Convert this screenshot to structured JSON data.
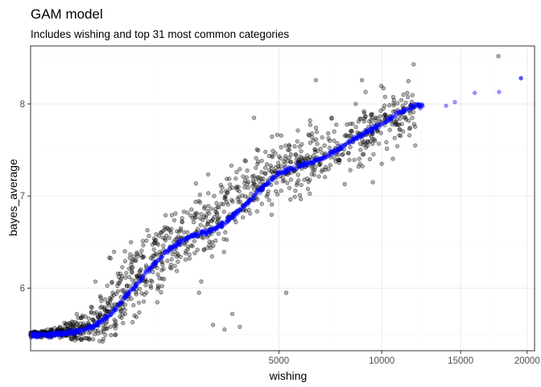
{
  "chart_data": {
    "type": "scatter",
    "title": "GAM model",
    "subtitle": "Includes wishing and top 31 most common categories",
    "xlabel": "wishing",
    "ylabel": "bayes_average",
    "x_scale": "sqrt",
    "xlim": [
      0,
      20600
    ],
    "ylim": [
      5.32,
      8.63
    ],
    "x_ticks": [
      5000,
      10000,
      15000,
      20000
    ],
    "x_tick_labels": [
      "5000",
      "10000",
      "15000",
      "20000"
    ],
    "y_ticks": [
      6,
      7,
      8
    ],
    "y_tick_labels": [
      "6",
      "7",
      "8"
    ],
    "grid": true,
    "colors": {
      "observed": "#000000",
      "fitted": "#0000ff",
      "panel_border": "#333333",
      "grid_major": "#ebebeb",
      "grid_minor": "#f5f5f5"
    },
    "series": [
      {
        "role": "observed",
        "cloud_anchors": {
          "x": [
            0,
            200,
            400,
            600,
            800,
            1000,
            1200,
            1500,
            1900,
            2400,
            3000,
            3700,
            4500,
            5500,
            7000,
            9000,
            11000,
            14000,
            17500
          ],
          "y": [
            5.5,
            5.56,
            5.7,
            5.88,
            6.05,
            6.18,
            6.3,
            6.45,
            6.57,
            6.65,
            6.82,
            7.05,
            7.22,
            7.3,
            7.45,
            7.65,
            7.85,
            7.95,
            8.15
          ],
          "spread": [
            0.02,
            0.15,
            0.28,
            0.35,
            0.38,
            0.38,
            0.38,
            0.38,
            0.36,
            0.36,
            0.34,
            0.33,
            0.32,
            0.3,
            0.3,
            0.3,
            0.3,
            0.25,
            0.25
          ]
        },
        "outliers": [
          [
            17750,
            8.52
          ],
          [
            11900,
            8.43
          ],
          [
            8900,
            8.26
          ],
          [
            6600,
            8.26
          ],
          [
            10100,
            8.17
          ],
          [
            9100,
            8.13
          ],
          [
            7350,
            7.85
          ],
          [
            8800,
            7.35
          ],
          [
            9500,
            7.15
          ],
          [
            5300,
            5.95
          ],
          [
            3300,
            5.72
          ],
          [
            2700,
            5.6
          ],
          [
            3550,
            5.58
          ],
          [
            10000,
            7.35
          ],
          [
            4050,
            7.85
          ],
          [
            12000,
            7.55
          ],
          [
            2300,
            5.95
          ],
          [
            3050,
            5.55
          ]
        ]
      },
      {
        "role": "fitted",
        "curve": {
          "x": [
            0,
            150,
            300,
            500,
            700,
            900,
            1100,
            1300,
            1500,
            1800,
            2100,
            2500,
            2900,
            3300,
            3800,
            4300,
            5000,
            5800,
            7000,
            8000,
            9000,
            10000,
            11000,
            12000,
            14000,
            16000,
            17800,
            19500
          ],
          "y": [
            5.49,
            5.52,
            5.58,
            5.7,
            5.88,
            6.03,
            6.18,
            6.3,
            6.4,
            6.5,
            6.57,
            6.61,
            6.67,
            6.78,
            6.92,
            7.08,
            7.25,
            7.32,
            7.42,
            7.55,
            7.68,
            7.78,
            7.9,
            7.98,
            8.0,
            8.05,
            8.15,
            8.28
          ]
        }
      }
    ]
  }
}
